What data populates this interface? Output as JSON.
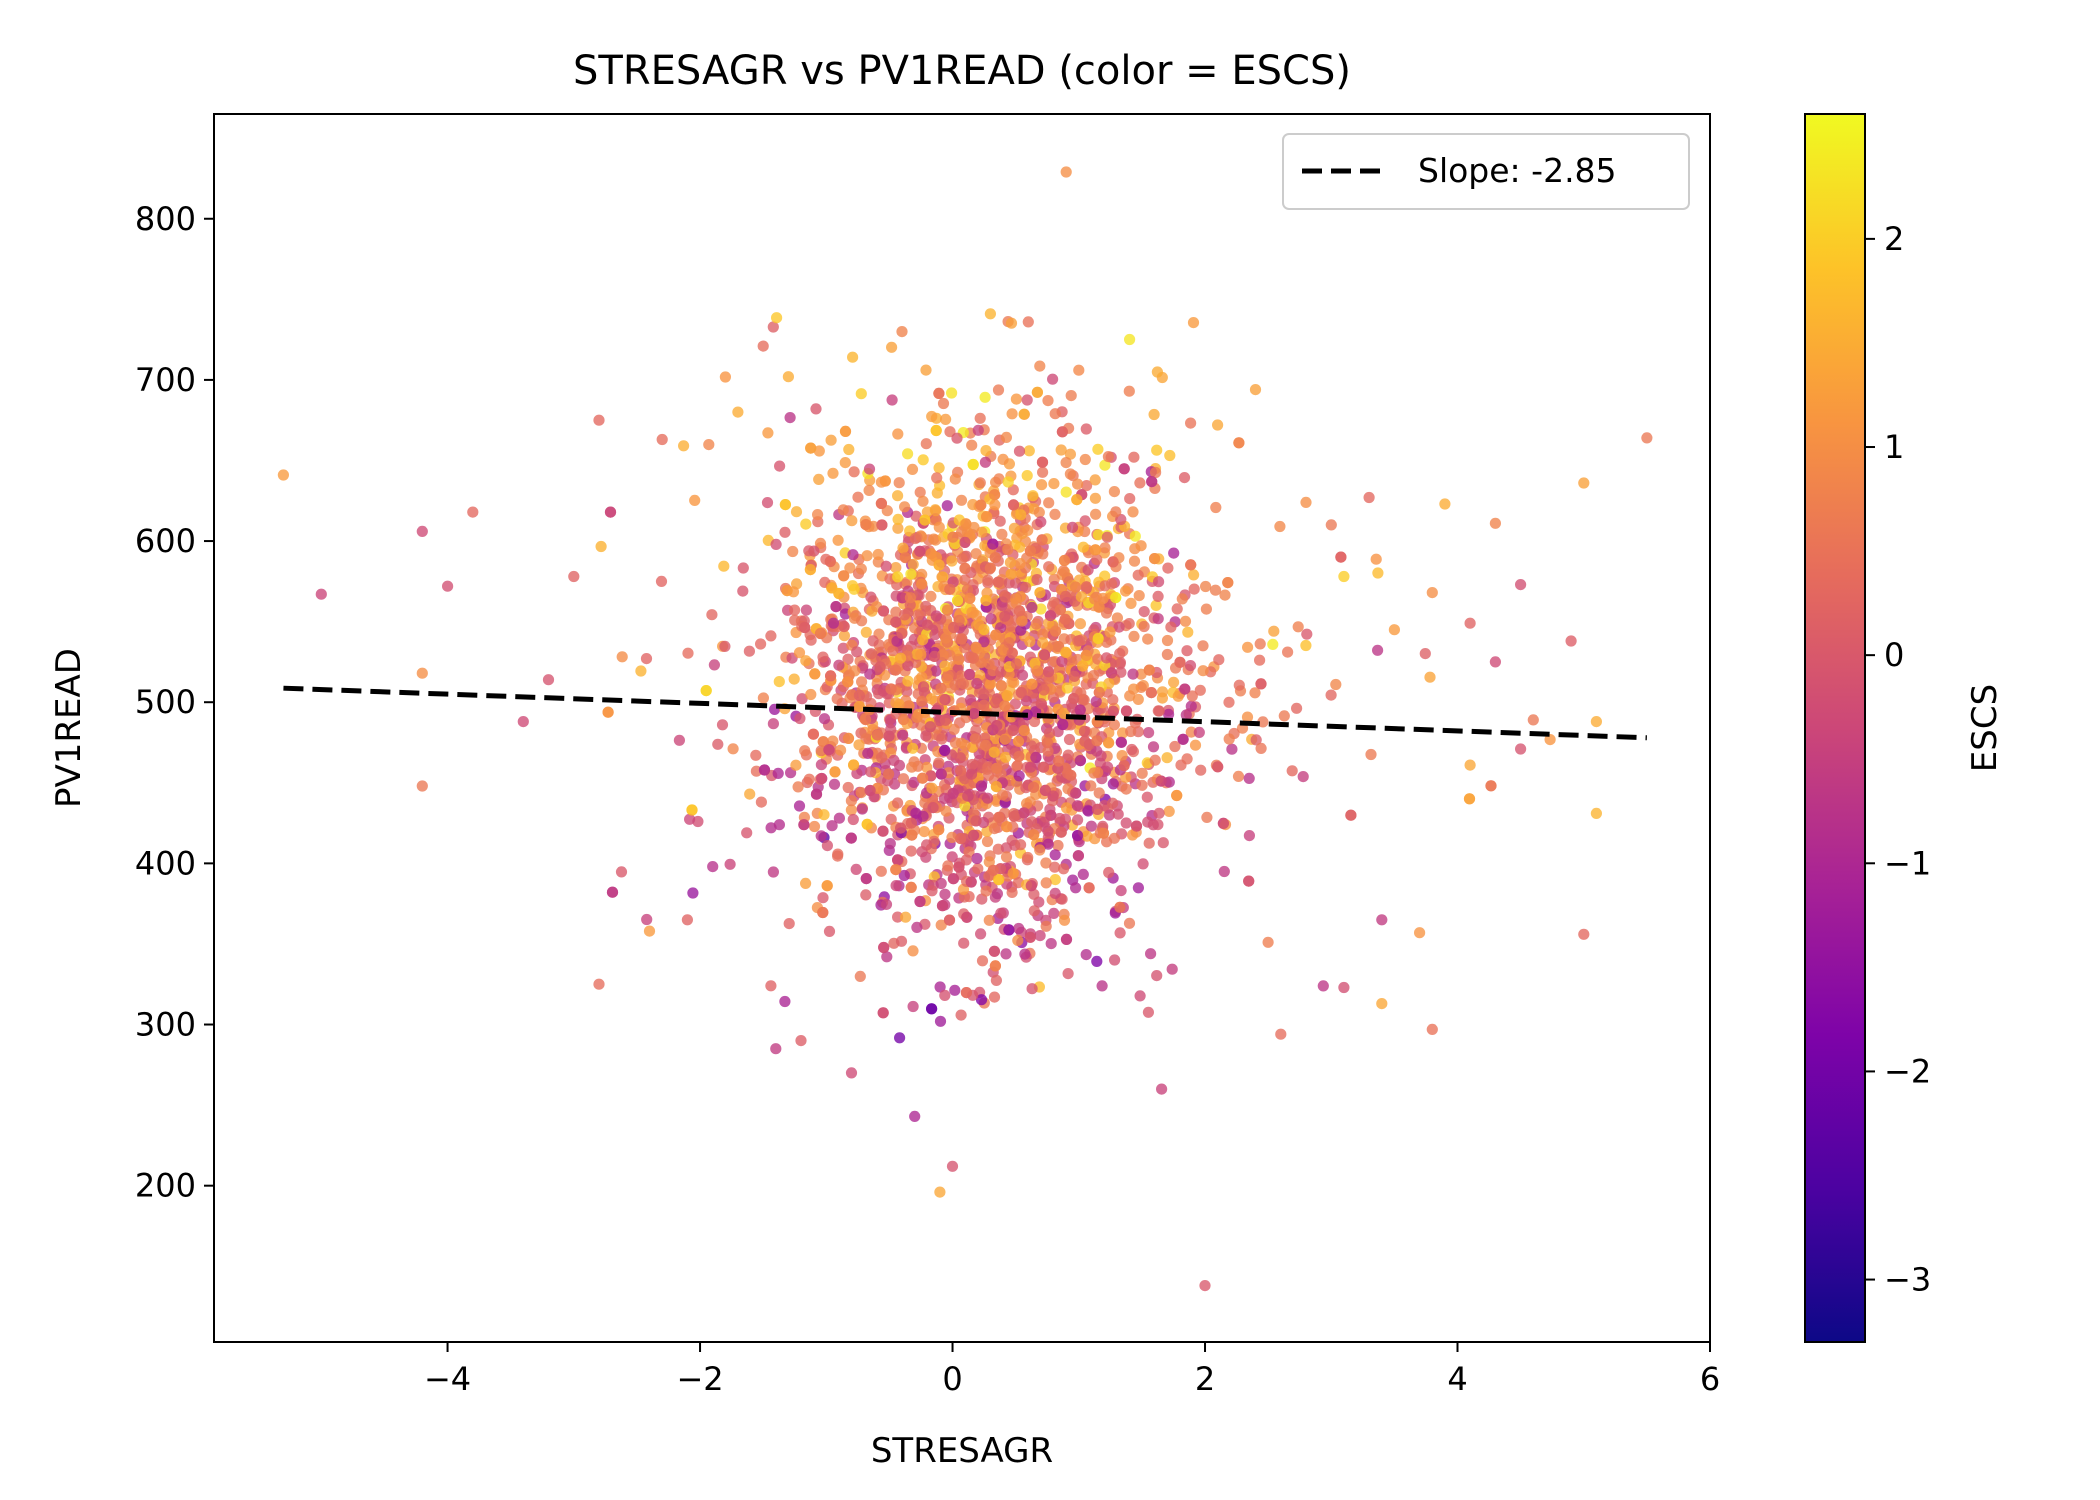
{
  "chart_data": {
    "type": "scatter",
    "title": "STRESAGR vs PV1READ (color = ESCS)",
    "xlabel": "STRESAGR",
    "ylabel": "PV1READ",
    "xlim": [
      -5.85,
      6.0
    ],
    "ylim": [
      103,
      865
    ],
    "x_ticks": [
      -4,
      -2,
      0,
      2,
      4,
      6
    ],
    "y_ticks": [
      200,
      300,
      400,
      500,
      600,
      700,
      800
    ],
    "grid": false,
    "colorbar": {
      "label": "ESCS",
      "colormap": "plasma",
      "range": [
        -3.3,
        2.6
      ],
      "ticks": [
        -3,
        -2,
        -1,
        0,
        1,
        2
      ]
    },
    "trendline": {
      "label": "Slope: -2.85",
      "slope": -2.85,
      "intercept": 493.6,
      "x_range": [
        -5.3,
        5.5
      ],
      "style": "dashed",
      "color": "#000000"
    },
    "legend": {
      "placement": "top-right"
    },
    "points_note_generated": true,
    "point_count": 2600,
    "outliers": [
      {
        "x": -5.3,
        "y": 641,
        "c": 1.2
      },
      {
        "x": -5.0,
        "y": 567,
        "c": -0.4
      },
      {
        "x": -4.2,
        "y": 606,
        "c": -0.3
      },
      {
        "x": -4.2,
        "y": 448,
        "c": 0.6
      },
      {
        "x": -4.2,
        "y": 518,
        "c": 1.0
      },
      {
        "x": -4.0,
        "y": 572,
        "c": -0.2
      },
      {
        "x": -3.8,
        "y": 618,
        "c": 0.3
      },
      {
        "x": -3.4,
        "y": 488,
        "c": -0.3
      },
      {
        "x": -3.2,
        "y": 514,
        "c": -0.1
      },
      {
        "x": -3.0,
        "y": 578,
        "c": 0.2
      },
      {
        "x": -2.8,
        "y": 325,
        "c": 0.4
      },
      {
        "x": -2.8,
        "y": 675,
        "c": 0.3
      },
      {
        "x": -2.3,
        "y": 663,
        "c": 0.4
      },
      {
        "x": -2.4,
        "y": 358,
        "c": 1.2
      },
      {
        "x": -2.1,
        "y": 365,
        "c": 0.2
      },
      {
        "x": -1.9,
        "y": 398,
        "c": -0.8
      },
      {
        "x": -1.7,
        "y": 680,
        "c": 1.5
      },
      {
        "x": -1.5,
        "y": 721,
        "c": 0.4
      },
      {
        "x": -1.4,
        "y": 285,
        "c": -0.6
      },
      {
        "x": -1.3,
        "y": 702,
        "c": 1.5
      },
      {
        "x": -1.2,
        "y": 290,
        "c": 0.1
      },
      {
        "x": -0.8,
        "y": 270,
        "c": -0.3
      },
      {
        "x": -0.3,
        "y": 243,
        "c": -1.0
      },
      {
        "x": -0.4,
        "y": 730,
        "c": 0.8
      },
      {
        "x": -0.1,
        "y": 196,
        "c": 1.4
      },
      {
        "x": 0.0,
        "y": 212,
        "c": -0.1
      },
      {
        "x": 0.3,
        "y": 741,
        "c": 1.6
      },
      {
        "x": 0.6,
        "y": 736,
        "c": 0.5
      },
      {
        "x": 0.9,
        "y": 829,
        "c": 1.0
      },
      {
        "x": 1.0,
        "y": 706,
        "c": 0.9
      },
      {
        "x": 1.4,
        "y": 693,
        "c": 0.7
      },
      {
        "x": 2.0,
        "y": 138,
        "c": 0.0
      },
      {
        "x": 2.1,
        "y": 672,
        "c": 1.4
      },
      {
        "x": 2.4,
        "y": 694,
        "c": 1.3
      },
      {
        "x": 2.6,
        "y": 294,
        "c": 0.4
      },
      {
        "x": 2.5,
        "y": 351,
        "c": 0.7
      },
      {
        "x": 2.8,
        "y": 624,
        "c": 1.0
      },
      {
        "x": 3.0,
        "y": 610,
        "c": 0.6
      },
      {
        "x": 3.1,
        "y": 578,
        "c": 2.0
      },
      {
        "x": 3.1,
        "y": 323,
        "c": -0.2
      },
      {
        "x": 3.3,
        "y": 627,
        "c": 0.3
      },
      {
        "x": 3.4,
        "y": 313,
        "c": 1.4
      },
      {
        "x": 3.4,
        "y": 365,
        "c": -0.6
      },
      {
        "x": 3.5,
        "y": 545,
        "c": 1.2
      },
      {
        "x": 3.7,
        "y": 357,
        "c": 1.1
      },
      {
        "x": 3.8,
        "y": 568,
        "c": 1.0
      },
      {
        "x": 3.8,
        "y": 297,
        "c": 0.5
      },
      {
        "x": 3.9,
        "y": 623,
        "c": 1.5
      },
      {
        "x": 4.1,
        "y": 461,
        "c": 1.4
      },
      {
        "x": 4.1,
        "y": 549,
        "c": 0.2
      },
      {
        "x": 4.3,
        "y": 611,
        "c": 0.8
      },
      {
        "x": 4.3,
        "y": 525,
        "c": -0.3
      },
      {
        "x": 4.5,
        "y": 573,
        "c": -0.2
      },
      {
        "x": 4.5,
        "y": 471,
        "c": -0.1
      },
      {
        "x": 4.6,
        "y": 489,
        "c": 0.6
      },
      {
        "x": 5.0,
        "y": 636,
        "c": 1.3
      },
      {
        "x": 4.9,
        "y": 538,
        "c": 0.1
      },
      {
        "x": 5.0,
        "y": 356,
        "c": 0.3
      },
      {
        "x": 5.1,
        "y": 431,
        "c": 1.6
      },
      {
        "x": 5.1,
        "y": 488,
        "c": 1.5
      },
      {
        "x": 5.5,
        "y": 664,
        "c": 0.6
      }
    ]
  }
}
